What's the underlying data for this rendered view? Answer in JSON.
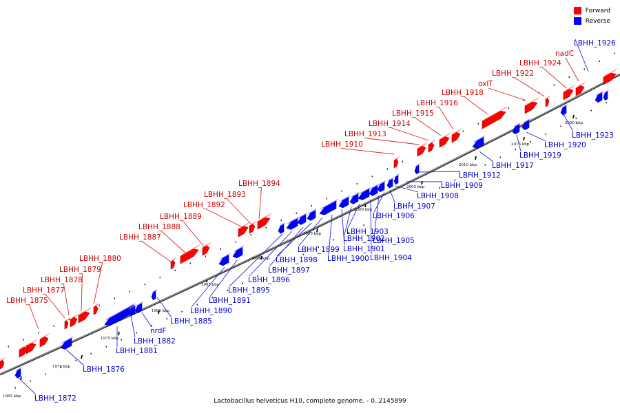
{
  "legend": {
    "forward_label": "Forward",
    "reverse_label": "Reverse",
    "forward_color": "#ff0000",
    "reverse_color": "#0000ff"
  },
  "caption": "Lactobacillus helveticus H10, complete genome. - 0..2145899",
  "scale_labels": [
    "1965 kbp",
    "1970 kbp",
    "1975 kbp",
    "1980 kbp",
    "1985 kbp",
    "1990 kbp",
    "1995 kbp",
    "2000 kbp",
    "2005 kbp",
    "2010 kbp",
    "2015 kbp",
    "2020 kbp"
  ],
  "forward_genes": [
    "LBHH_1875",
    "LBHH_1877",
    "LBHH_1878",
    "LBHH_1879",
    "LBHH_1880",
    "LBHH_1887",
    "LBHH_1888",
    "LBHH_1889",
    "LBHH_1892",
    "LBHH_1893",
    "LBHH_1894",
    "LBHH_1910",
    "LBHH_1913",
    "LBHH_1914",
    "LBHH_1915",
    "LBHH_1916",
    "LBHH_1918",
    "oxlT",
    "LBHH_1922",
    "LBHH_1924",
    "nadC"
  ],
  "reverse_genes": [
    "LBHH_1872",
    "LBHH_1876",
    "LBHH_1881",
    "LBHH_1882",
    "nrdF",
    "LBHH_1885",
    "LBHH_1890",
    "LBHH_1891",
    "LBHH_1895",
    "LBHH_1896",
    "LBHH_1897",
    "LBHH_1898",
    "LBHH_1899",
    "LBHH_1900",
    "LBHH_1901",
    "LBHH_1902",
    "LBHH_1903",
    "LBHH_1904",
    "LBHH_1905",
    "LBHH_1906",
    "LBHH_1907",
    "LBHH_1908",
    "LBHH_1909",
    "LBHH_1912",
    "LBHH_1917",
    "LBHH_1919",
    "LBHH_1920",
    "LBHH_1923",
    "LBHH_1926"
  ]
}
